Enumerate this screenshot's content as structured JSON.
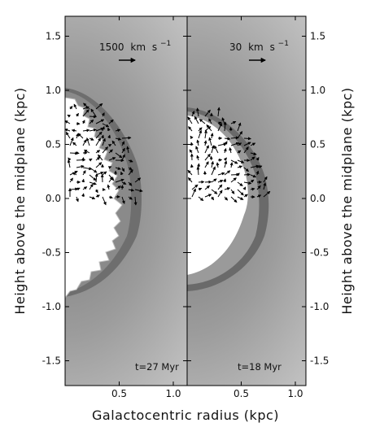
{
  "chart_data": [
    {
      "type": "heatmap",
      "panel": "left",
      "time_label": "t=27 Myr",
      "reference_vector_label": "1500 km s⁻¹",
      "xlabel": "Galactocentric radius (kpc)",
      "ylabel": "Height above the midplane (kpc)",
      "xlim": [
        0.0,
        1.1
      ],
      "ylim": [
        -1.7,
        1.7
      ],
      "x_ticks": [
        "0.5",
        "1.0"
      ],
      "y_ticks": [
        "-1.5",
        "-1.0",
        "-0.5",
        "0.0",
        "0.5",
        "1.0",
        "1.5"
      ],
      "bubble_extent_kpc": {
        "radius_max": 0.5,
        "top": 1.0,
        "bottom": -0.95
      },
      "shell_outer_radius_kpc": 0.72
    },
    {
      "type": "heatmap",
      "panel": "right",
      "time_label": "t=18 Myr",
      "reference_vector_label": "30 km s⁻¹",
      "xlabel": "Galactocentric radius (kpc)",
      "ylabel": "Height above the midplane (kpc)",
      "xlim": [
        0.0,
        1.1
      ],
      "ylim": [
        -1.7,
        1.7
      ],
      "x_ticks": [
        "0.5",
        "1.0"
      ],
      "y_ticks": [
        "-1.5",
        "-1.0",
        "-0.5",
        "0.0",
        "0.5",
        "1.0",
        "1.5"
      ],
      "bubble_extent_kpc": {
        "radius_max": 0.6,
        "top": 0.82,
        "bottom": -0.8
      },
      "shell_outer_radius_kpc": 0.78
    }
  ],
  "labels": {
    "xlabel": "Galactocentric radius (kpc)",
    "ylabel_left": "Height above the midplane (kpc)",
    "ylabel_right": "Height above the midplane (kpc)",
    "left_time": "t=27 Myr",
    "right_time": "t=18 Myr",
    "left_vec_num": "1500",
    "right_vec_num": "30",
    "vec_unit_km": "km",
    "vec_unit_s": "s",
    "vec_unit_exp": "−1"
  }
}
